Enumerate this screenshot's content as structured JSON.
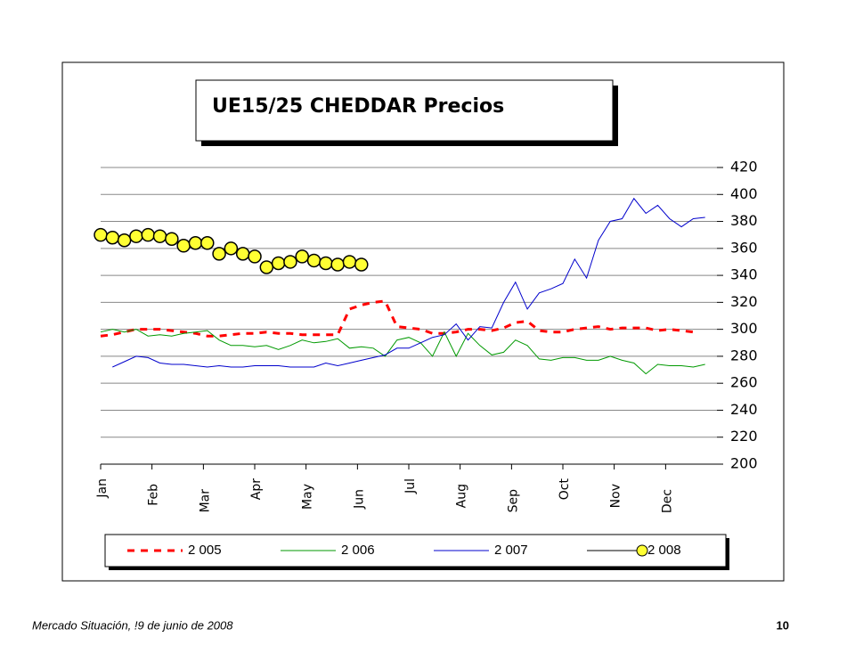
{
  "chart_data": {
    "type": "line",
    "title": "UE15/25 CHEDDAR Precios",
    "x": [
      0,
      1,
      2,
      3,
      4,
      5,
      6,
      7,
      8,
      9,
      10,
      11,
      12,
      13,
      14,
      15,
      16,
      17,
      18,
      19,
      20,
      21,
      22,
      23,
      24,
      25,
      26,
      27,
      28,
      29,
      30,
      31,
      32,
      33,
      34,
      35,
      36,
      37,
      38,
      39,
      40,
      41,
      42,
      43,
      44,
      45,
      46,
      47,
      48,
      49,
      50,
      51
    ],
    "xlim": [
      0,
      52
    ],
    "xticks": [
      {
        "value": 0,
        "label": "Jan"
      },
      {
        "value": 4.33,
        "label": "Feb"
      },
      {
        "value": 8.67,
        "label": "Mar"
      },
      {
        "value": 13,
        "label": "Apr"
      },
      {
        "value": 17.33,
        "label": "May"
      },
      {
        "value": 21.67,
        "label": "Jun"
      },
      {
        "value": 26,
        "label": "Jul"
      },
      {
        "value": 30.33,
        "label": "Aug"
      },
      {
        "value": 34.67,
        "label": "Sep"
      },
      {
        "value": 39,
        "label": "Oct"
      },
      {
        "value": 43.33,
        "label": "Nov"
      },
      {
        "value": 47.67,
        "label": "Dec"
      }
    ],
    "ylim": [
      200,
      420
    ],
    "yticks": [
      200,
      220,
      240,
      260,
      280,
      300,
      320,
      340,
      360,
      380,
      400,
      420
    ],
    "grid": true,
    "legend": "bottom",
    "series": [
      {
        "name": "2 005",
        "color": "#ff0000",
        "line_style": "dashed",
        "values": [
          295,
          296,
          298,
          300,
          300,
          300,
          299,
          298,
          297,
          295,
          295,
          296,
          297,
          297,
          298,
          297,
          297,
          296,
          296,
          296,
          296,
          315,
          318,
          320,
          321,
          302,
          301,
          300,
          297,
          297,
          298,
          300,
          300,
          299,
          301,
          305,
          306,
          299,
          298,
          298,
          300,
          301,
          302,
          300,
          301,
          301,
          301,
          299,
          300,
          299,
          298,
          null
        ]
      },
      {
        "name": "2 006",
        "color": "#009900",
        "line_style": "solid",
        "values": [
          298,
          300,
          298,
          300,
          295,
          296,
          295,
          297,
          298,
          299,
          292,
          288,
          288,
          287,
          288,
          285,
          288,
          292,
          290,
          291,
          293,
          286,
          287,
          286,
          280,
          292,
          294,
          290,
          280,
          298,
          280,
          297,
          288,
          281,
          283,
          292,
          288,
          278,
          277,
          279,
          279,
          277,
          277,
          280,
          277,
          275,
          267,
          274,
          273,
          273,
          272,
          274
        ]
      },
      {
        "name": "2 007",
        "color": "#0000cc",
        "line_style": "solid",
        "values": [
          null,
          272,
          276,
          280,
          279,
          275,
          274,
          274,
          273,
          272,
          273,
          272,
          272,
          273,
          273,
          273,
          272,
          272,
          272,
          275,
          273,
          275,
          277,
          279,
          281,
          286,
          286,
          290,
          294,
          296,
          304,
          292,
          302,
          301,
          320,
          335,
          315,
          327,
          330,
          334,
          352,
          338,
          366,
          380,
          382,
          397,
          386,
          392,
          382,
          376,
          382,
          383
        ]
      },
      {
        "name": "2 008",
        "color": "#000000",
        "line_style": "none",
        "marker": "circle",
        "marker_color": "#ffff33",
        "values": [
          370,
          368,
          366,
          369,
          370,
          369,
          367,
          362,
          364,
          364,
          356,
          360,
          356,
          354,
          346,
          349,
          350,
          354,
          351,
          349,
          348,
          350,
          348,
          null,
          null,
          null,
          null,
          null,
          null,
          null,
          null,
          null,
          null,
          null,
          null,
          null,
          null,
          null,
          null,
          null,
          null,
          null,
          null,
          null,
          null,
          null,
          null,
          null,
          null,
          null,
          null,
          null
        ]
      }
    ]
  },
  "footer": {
    "source": "Mercado Situación, !9 de junio de 2008",
    "page": "10"
  }
}
